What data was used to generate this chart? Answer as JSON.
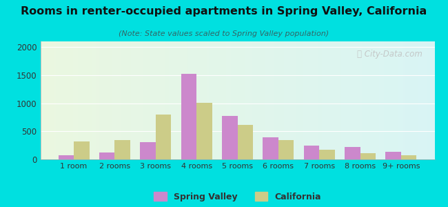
{
  "title": "Rooms in renter-occupied apartments in Spring Valley, California",
  "subtitle": "(Note: State values scaled to Spring Valley population)",
  "categories": [
    "1 room",
    "2 rooms",
    "3 rooms",
    "4 rooms",
    "5 rooms",
    "6 rooms",
    "7 rooms",
    "8 rooms",
    "9+ rooms"
  ],
  "spring_valley": [
    75,
    120,
    310,
    1520,
    775,
    390,
    240,
    220,
    130
  ],
  "california": [
    320,
    350,
    800,
    1010,
    610,
    350,
    170,
    105,
    75
  ],
  "sv_color": "#cc88cc",
  "ca_color": "#cccc88",
  "background_outer": "#00e0e0",
  "title_color": "#111111",
  "subtitle_color": "#336666",
  "ylim": [
    0,
    2100
  ],
  "yticks": [
    0,
    500,
    1000,
    1500,
    2000
  ],
  "bar_width": 0.38,
  "legend_sv": "Spring Valley",
  "legend_ca": "California"
}
